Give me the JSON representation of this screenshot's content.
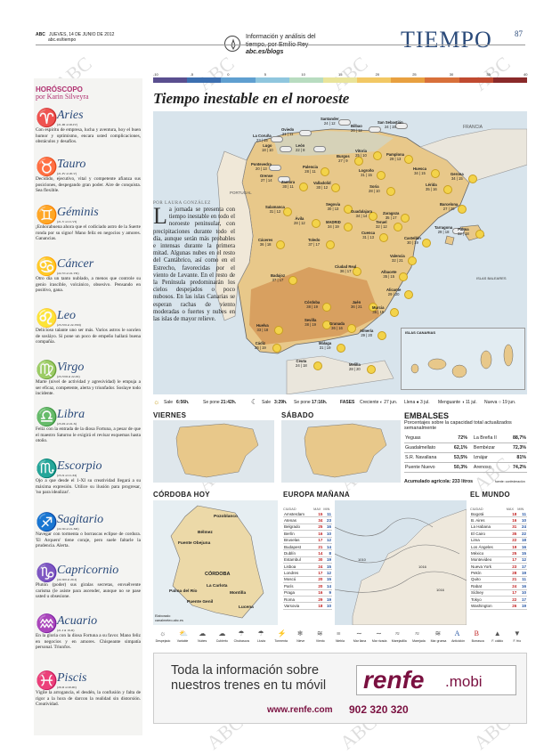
{
  "header": {
    "abc": "ABC",
    "date": "JUEVES, 14 DE JUNIO DE 2012",
    "url": "abc.es/tiempo",
    "author_line1": "Información y análisis del",
    "author_line2": "tiempo, por Emilio Rey",
    "author_blog": "abc.es/blogs",
    "section": "TIEMPO",
    "page": "87"
  },
  "horoscope": {
    "title": "HORÓSCOPO",
    "by": "por Karin Silveyra",
    "signs": [
      {
        "symbol": "♈",
        "name": "Aries",
        "dates": "(21-III al 20-IV)",
        "text": "Con espíritu de empresa, lucha y aventura, hoy el buen humor y optimismo, encara usted complicaciones, obstáculos y desafíos."
      },
      {
        "symbol": "♉",
        "name": "Tauro",
        "dates": "(21-IV al 20-V)",
        "text": "Decidido, ejecutivo, vital y competente afianza sus posiciones, despegando gran poder. Aire de conquista. Sea flexible."
      },
      {
        "symbol": "♊",
        "name": "Géminis",
        "dates": "(21-V al 21-VI)",
        "text": "¡Enhorabuena ahora que el codiciado astro de la Suerte ronda por su signo! Mano feliz en negocios y amores. Ganancias."
      },
      {
        "symbol": "♋",
        "name": "Cáncer",
        "dates": "(22-VI al 22-VII)",
        "text": "Otro día un tanto nublado, a menos que controle su genio irascible, volcánico, obsesivo. Pensando en positivo, gana."
      },
      {
        "symbol": "♌",
        "name": "Leo",
        "dates": "(23-VII al 22-VIII)",
        "text": "Delicioso talante uno ser más. Varios astros le sonríen de sosláyo. Si pone un poco de empeño hallará buena compañía."
      },
      {
        "symbol": "♍",
        "name": "Virgo",
        "dates": "(23-VIII al 22-IX)",
        "text": "Marte (nivel de actividad y agresividad) le empuja a ser eficaz, competente, alerta y triunfador. Soslaye todo incidente."
      },
      {
        "symbol": "♎",
        "name": "Libra",
        "dates": "(23-IX al 22-X)",
        "text": "Feliz con la entrada de la diosa Fortuna, a pesar de que el maestro Saturno le exigirá el revisar esquemas hasta otoño."
      },
      {
        "symbol": "♏",
        "name": "Escorpio",
        "dates": "(23-X al 21-XI)",
        "text": "Ojo a que desde el 1-XI su creatividad llegará a su máxima expresión. Utilice su ilusión para progresar, 'no para idealizar'."
      },
      {
        "symbol": "♐",
        "name": "Sagitario",
        "dates": "(22-XI al 21-XII)",
        "text": "Navegar con tormenta o borrascas eclipse de cordura. 'El Arquero' tiene coraje, pero suele faltarle la prudencia. Alerta."
      },
      {
        "symbol": "♑",
        "name": "Capricornio",
        "dates": "(22-XII al 20-I)",
        "text": "Plutón (poder) sus giralas secretas, envuélvente carisma (le asiste para ascender, aunque no se pase usted u obsesione."
      },
      {
        "symbol": "♒",
        "name": "Acuario",
        "dates": "(21-I al 19-II)",
        "text": "En la gloria con la diosa Fortuna a su favor. Mano feliz en negocios y en amores. Chispeante simpatía personal. Triunfos."
      },
      {
        "symbol": "♓",
        "name": "Piscis",
        "dates": "(20-II al 20-III)",
        "text": "Vigile la arrogancia, el desdén, la confusión y falta de rigor a la hora de darcon la realidad sin distorsión. Creatividad."
      }
    ]
  },
  "scale": {
    "labels": [
      "-10",
      "-5",
      "0",
      "5",
      "10",
      "15",
      "20",
      "25",
      "30",
      "35",
      "40"
    ],
    "colors": [
      "#5a4f8f",
      "#3c6fb0",
      "#5f9fd0",
      "#8fc6de",
      "#b8dcc0",
      "#e9e49a",
      "#f2c864",
      "#e8a040",
      "#d8703a",
      "#c04a30",
      "#8a2a2a"
    ]
  },
  "main": {
    "title": "Tiempo inestable en el noroeste",
    "byline": "POR LAURA GONZÁLEZ",
    "article_drop": "L",
    "article": "a jornada se presenta con tiempo inestable en todo el noroeste peninsular, con precipitaciones durante todo el día, aunque serán más probables e intensas durante la primera mitad. Algunas nubes en el resto del Cantábrico, así como en el Estrecho, favorecidas por el viento de Levante. En el resto de la Península predominarán los cielos despejados o poco nubosos. En las islas Canarias se esperan rachas de viento moderadas o fuertes y nubes en las islas de mayor relieve.",
    "labels": {
      "francia": "FRANCIA",
      "portugal": "PORTUGAL",
      "baleares": "ISLAS BALEARES",
      "canarias": "ISLAS CANARIAS"
    },
    "cities": [
      {
        "name": "Oviedo",
        "temp": "21 | 11"
      },
      {
        "name": "Santander",
        "temp": "24 | 12"
      },
      {
        "name": "Bilbao",
        "temp": "26 | 12"
      },
      {
        "name": "San Sebastián",
        "temp": "24 | 15"
      },
      {
        "name": "La Coruña",
        "temp": "23 | 15"
      },
      {
        "name": "Lugo",
        "temp": "18 | 10"
      },
      {
        "name": "León",
        "temp": "22 | 8"
      },
      {
        "name": "Pontevedra",
        "temp": "20 | 13"
      },
      {
        "name": "Orense",
        "temp": "27 | 14"
      },
      {
        "name": "Palencia",
        "temp": "28 | 11"
      },
      {
        "name": "Burgos",
        "temp": "27 | 9"
      },
      {
        "name": "Vitoria",
        "temp": "25 | 10"
      },
      {
        "name": "Pamplona",
        "temp": "29 | 13"
      },
      {
        "name": "Logroño",
        "temp": "31 | 15"
      },
      {
        "name": "Huesca",
        "temp": "34 | 15"
      },
      {
        "name": "Lérida",
        "temp": "35 | 16"
      },
      {
        "name": "Gerona",
        "temp": "34 | 15"
      },
      {
        "name": "Barcelona",
        "temp": "27 | 20"
      },
      {
        "name": "Zamora",
        "temp": "30 | 11"
      },
      {
        "name": "Valladolid",
        "temp": "30 | 12"
      },
      {
        "name": "Soria",
        "temp": "28 | 10"
      },
      {
        "name": "Zaragoza",
        "temp": "35 | 17"
      },
      {
        "name": "Tarragona",
        "temp": "29 | 18"
      },
      {
        "name": "Salamanca",
        "temp": "31 | 12"
      },
      {
        "name": "Segovia",
        "temp": "30 | 13"
      },
      {
        "name": "Guadalajara",
        "temp": "34 | 14"
      },
      {
        "name": "Teruel",
        "temp": "32 | 12"
      },
      {
        "name": "Castellón",
        "temp": "30 | 19"
      },
      {
        "name": "Ávila",
        "temp": "28 | 12"
      },
      {
        "name": "MADRID",
        "temp": "34 | 19"
      },
      {
        "name": "Cuenca",
        "temp": "31 | 13"
      },
      {
        "name": "Palma",
        "temp": "32 | 18"
      },
      {
        "name": "Cáceres",
        "temp": "36 | 18"
      },
      {
        "name": "Toledo",
        "temp": "37 | 17"
      },
      {
        "name": "Valencia",
        "temp": "32 | 21"
      },
      {
        "name": "Ciudad Real",
        "temp": "36 | 17"
      },
      {
        "name": "Albacete",
        "temp": "35 | 15"
      },
      {
        "name": "Badajoz",
        "temp": "37 | 17"
      },
      {
        "name": "Alicante",
        "temp": "29 | 20"
      },
      {
        "name": "Córdoba",
        "temp": "38 | 19"
      },
      {
        "name": "Jaén",
        "temp": "36 | 21"
      },
      {
        "name": "Murcia",
        "temp": "36 | 19"
      },
      {
        "name": "Huelva",
        "temp": "33 | 18"
      },
      {
        "name": "Sevilla",
        "temp": "38 | 19"
      },
      {
        "name": "Granada",
        "temp": "36 | 16"
      },
      {
        "name": "Almería",
        "temp": "29 | 20"
      },
      {
        "name": "Cádiz",
        "temp": "26 | 19"
      },
      {
        "name": "Málaga",
        "temp": "31 | 19"
      },
      {
        "name": "Ceuta",
        "temp": "24 | 18"
      },
      {
        "name": "Melilla",
        "temp": "28 | 20"
      },
      {
        "name": "Santa Cruz de Tenerife",
        "temp": "26 | 20"
      },
      {
        "name": "Las Palmas de Gran Canaria",
        "temp": "25 | 20"
      }
    ]
  },
  "bar": {
    "sol_sale_label": "Sale",
    "sol_sale": "6:56h.",
    "sol_pone_label": "Se pone",
    "sol_pone": "21:42h.",
    "luna_sale_label": "Sale",
    "luna_sale": "3:29h.",
    "luna_pone_label": "Se pone",
    "luna_pone": "17:16h.",
    "fases": "FASES",
    "creciente": "Creciente ◐ 27 jun.",
    "llena": "Llena ● 3 jul.",
    "menguante": "Menguante ◑ 11 jul.",
    "nueva": "Nueva ○ 19 jun."
  },
  "embalses": {
    "title": "EMBALSES",
    "subtitle": "Porcentajes sobre la capacidad total actualizados semanalmente",
    "rows": [
      {
        "name": "Yeguas",
        "val": "72%",
        "name2": "La Breña II",
        "val2": "88,7%"
      },
      {
        "name": "Guadalmellato",
        "val": "62,1%",
        "name2": "Bembézar",
        "val2": "72,3%"
      },
      {
        "name": "S.R. Navallana",
        "val": "53,5%",
        "name2": "Iznájar",
        "val2": "81%"
      },
      {
        "name": "Puente Nuevo",
        "val": "50,3%",
        "name2": "Arenoso",
        "val2": "74,2%"
      }
    ],
    "total": "Acumulado agrícola: 233 litros",
    "source": "fuente: confederación"
  },
  "small_maps": {
    "viernes": "VIERNES",
    "sabado": "SÁBADO",
    "cordoba": "CÓRDOBA HOY",
    "cordoba_cities": [
      "Pozoblanco",
      "Bélmez",
      "Fuente Obejuna",
      "CÓRDOBA",
      "Palma del Río",
      "La Carlota",
      "Puente Genil",
      "Montilla",
      "Lucena"
    ],
    "cordoba_source": "Elaborado canalmeteo.abc.es"
  },
  "europa": {
    "title": "EUROPA MAÑANA",
    "h_city": "CIUDAD",
    "h_max": "MAX",
    "h_min": "MIN",
    "rows": [
      [
        "Amsterdam",
        "15",
        "11"
      ],
      [
        "Atenas",
        "34",
        "23"
      ],
      [
        "Belgrado",
        "25",
        "16"
      ],
      [
        "Berlín",
        "16",
        "10"
      ],
      [
        "Bruselas",
        "17",
        "12"
      ],
      [
        "Budapest",
        "21",
        "14"
      ],
      [
        "Dublín",
        "14",
        "8"
      ],
      [
        "Estambul",
        "30",
        "19"
      ],
      [
        "Lisboa",
        "24",
        "15"
      ],
      [
        "Londres",
        "17",
        "12"
      ],
      [
        "Moscú",
        "20",
        "15"
      ],
      [
        "París",
        "20",
        "14"
      ],
      [
        "Praga",
        "16",
        "9"
      ],
      [
        "Roma",
        "29",
        "19"
      ],
      [
        "Varsovia",
        "18",
        "10"
      ]
    ],
    "pressure_labels": [
      "1010",
      "1016",
      "1016"
    ]
  },
  "mundo": {
    "title": "EL MUNDO",
    "h_city": "CIUDAD",
    "h_max": "MAX",
    "h_min": "MIN",
    "rows": [
      [
        "Bogotá",
        "18",
        "11"
      ],
      [
        "B. Aires",
        "16",
        "10"
      ],
      [
        "La Habana",
        "31",
        "24"
      ],
      [
        "El Cairo",
        "35",
        "22"
      ],
      [
        "Lima",
        "22",
        "18"
      ],
      [
        "Los Ángeles",
        "19",
        "16"
      ],
      [
        "México",
        "25",
        "15"
      ],
      [
        "Montevideo",
        "17",
        "12"
      ],
      [
        "Nueva York",
        "23",
        "17"
      ],
      [
        "Pekín",
        "28",
        "19"
      ],
      [
        "Quito",
        "21",
        "11"
      ],
      [
        "Rabat",
        "24",
        "16"
      ],
      [
        "Sídney",
        "17",
        "10"
      ],
      [
        "Tokyo",
        "22",
        "17"
      ],
      [
        "Washington",
        "26",
        "19"
      ]
    ]
  },
  "legend": [
    "Despejado",
    "Variable",
    "Nubes",
    "Cubierto",
    "Chubascos",
    "Lluvia",
    "Tormenta",
    "Nieve",
    "Viento",
    "Niebla",
    "Mar llana",
    "Mar rizada",
    "Marejadilla",
    "Marejada",
    "Mar gruesa",
    "Anticiclón",
    "Borrasca",
    "F. cálido",
    "F. frío"
  ],
  "ad": {
    "line1": "Toda la información sobre",
    "line2": "nuestros trenes en tu móvil",
    "logo_main": "renfe",
    "logo_suffix": ".mobi",
    "url": "www.renfe.com",
    "phone": "902 320 320"
  },
  "watermark": "ABC"
}
